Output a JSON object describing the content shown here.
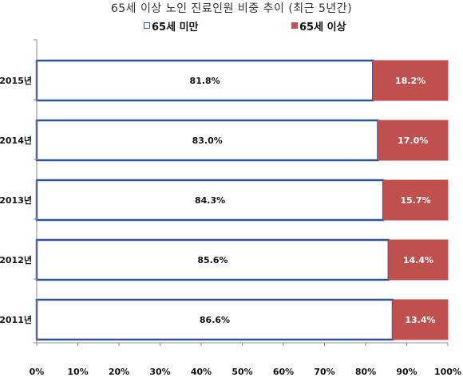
{
  "chart_data": {
    "type": "bar",
    "orientation": "horizontal",
    "stacked": "percent",
    "title": "65세 이상 노인 진료인원 비중 추이 (최근 5년간)",
    "categories": [
      "2015년",
      "2014년",
      "2013년",
      "2012년",
      "2011년"
    ],
    "series": [
      {
        "name": "65세 미만",
        "values": [
          81.8,
          83.0,
          84.3,
          85.6,
          86.6
        ],
        "labels": [
          "81.8%",
          "83.0%",
          "84.3%",
          "85.6%",
          "86.6%"
        ],
        "fill": "#ffffff",
        "stroke": "#2e5597"
      },
      {
        "name": "65세 이상",
        "values": [
          18.2,
          17.0,
          15.7,
          14.4,
          13.4
        ],
        "labels": [
          "18.2%",
          "17.0%",
          "15.7%",
          "14.4%",
          "13.4%"
        ],
        "fill": "#c0504d",
        "stroke": "#c0504d"
      }
    ],
    "x_ticks": [
      "0%",
      "10%",
      "20%",
      "30%",
      "40%",
      "50%",
      "60%",
      "70%",
      "80%",
      "90%",
      "100%"
    ],
    "xlim": [
      0,
      100
    ],
    "grid": false,
    "legend": "top"
  }
}
